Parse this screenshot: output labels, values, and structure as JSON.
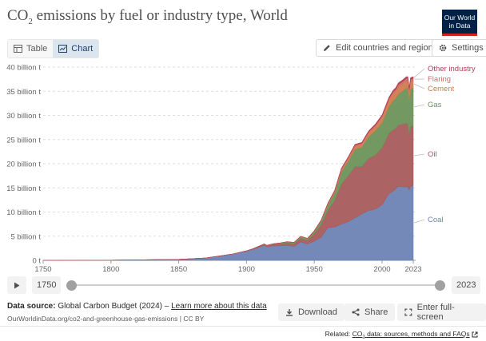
{
  "header": {
    "title_prefix": "CO",
    "title_sub": "2",
    "title_rest": " emissions by fuel or industry type, World",
    "logo_line1": "Our World",
    "logo_line2": "in Data"
  },
  "tabs": [
    {
      "label": "Table",
      "icon": "table-icon",
      "active": false
    },
    {
      "label": "Chart",
      "icon": "line-chart-icon",
      "active": true
    }
  ],
  "toolbar": {
    "edit_label": "Edit countries and regions",
    "settings_label": "Settings"
  },
  "timeline": {
    "start": "1750",
    "end": "2023"
  },
  "footer": {
    "source_label": "Data source:",
    "source_text": "Global Carbon Budget (2024)",
    "source_sep": " – ",
    "learn_more": "Learn more about this data",
    "url": "OurWorldinData.org/co2-and-greenhouse-gas-emissions | CC BY",
    "download_label": "Download",
    "share_label": "Share",
    "fullscreen_label": "Enter full-screen",
    "related_label": "Related:",
    "related_link_prefix": "CO",
    "related_link_sub": "2",
    "related_link_rest": " data: sources, methods and FAQs"
  },
  "chart_data": {
    "type": "area",
    "stacked": true,
    "x_ticks": [
      1750,
      1800,
      1850,
      1900,
      1950,
      2000,
      2023
    ],
    "y_ticks": [
      0,
      5,
      10,
      15,
      20,
      25,
      30,
      35,
      40
    ],
    "y_tick_labels": [
      "0 t",
      "5 billion t",
      "10 billion t",
      "15 billion t",
      "20 billion t",
      "25 billion t",
      "30 billion t",
      "35 billion t",
      "40 billion t"
    ],
    "xlim": [
      1750,
      2023
    ],
    "ylim": [
      0,
      40
    ],
    "grid": "horizontal dashed",
    "legend": "right, inline labels",
    "x": [
      1750,
      1800,
      1850,
      1870,
      1880,
      1890,
      1900,
      1905,
      1910,
      1913,
      1915,
      1920,
      1925,
      1930,
      1935,
      1940,
      1945,
      1950,
      1955,
      1960,
      1965,
      1970,
      1975,
      1980,
      1985,
      1990,
      1995,
      2000,
      2005,
      2008,
      2010,
      2012,
      2015,
      2018,
      2019,
      2020,
      2021,
      2023
    ],
    "series": [
      {
        "name": "Coal",
        "color": "#6d83b4",
        "values": [
          0.01,
          0.03,
          0.2,
          0.5,
          0.9,
          1.3,
          1.9,
          2.3,
          2.8,
          3.1,
          2.8,
          3.0,
          3.0,
          3.1,
          2.9,
          3.8,
          3.4,
          4.0,
          4.8,
          6.8,
          6.9,
          7.5,
          8.0,
          8.8,
          9.6,
          10.3,
          10.6,
          11.5,
          13.8,
          14.3,
          14.8,
          15.3,
          15.2,
          15.2,
          15.1,
          14.6,
          15.3,
          15.5
        ]
      },
      {
        "name": "Oil",
        "color": "#a75b5b",
        "values": [
          0,
          0,
          0,
          0,
          0,
          0.02,
          0.05,
          0.1,
          0.15,
          0.2,
          0.2,
          0.3,
          0.4,
          0.5,
          0.5,
          0.8,
          0.7,
          1.5,
          2.5,
          3.6,
          5.5,
          8.3,
          9.5,
          10.6,
          9.8,
          10.8,
          11.2,
          11.8,
          12.5,
          12.7,
          12.5,
          12.7,
          13.0,
          13.2,
          13.1,
          11.5,
          12.4,
          12.3
        ]
      },
      {
        "name": "Gas",
        "color": "#6c9259",
        "values": [
          0,
          0,
          0,
          0,
          0,
          0,
          0.01,
          0.02,
          0.05,
          0.06,
          0.07,
          0.1,
          0.15,
          0.2,
          0.25,
          0.3,
          0.35,
          0.5,
          0.8,
          1.1,
          1.5,
          2.5,
          3.0,
          3.6,
          4.0,
          4.5,
          5.0,
          5.2,
          5.5,
          6.0,
          6.2,
          6.4,
          6.8,
          7.3,
          7.5,
          7.3,
          7.7,
          7.9
        ]
      },
      {
        "name": "Cement",
        "color": "#d07b4e",
        "values": [
          0,
          0,
          0,
          0,
          0,
          0,
          0,
          0.01,
          0.02,
          0.03,
          0.03,
          0.04,
          0.05,
          0.05,
          0.06,
          0.07,
          0.07,
          0.1,
          0.13,
          0.2,
          0.3,
          0.4,
          0.5,
          0.6,
          0.7,
          0.8,
          1.0,
          1.2,
          1.4,
          1.6,
          1.6,
          1.7,
          1.6,
          1.6,
          1.6,
          1.6,
          1.7,
          1.6
        ]
      },
      {
        "name": "Flaring",
        "color": "#cf6a6a",
        "values": [
          0,
          0,
          0,
          0,
          0,
          0,
          0,
          0,
          0,
          0,
          0,
          0,
          0,
          0,
          0,
          0,
          0.02,
          0.03,
          0.05,
          0.1,
          0.2,
          0.3,
          0.3,
          0.3,
          0.2,
          0.2,
          0.2,
          0.2,
          0.3,
          0.3,
          0.3,
          0.3,
          0.4,
          0.4,
          0.4,
          0.4,
          0.4,
          0.4
        ]
      },
      {
        "name": "Other industry",
        "color": "#b13f56",
        "values": [
          0,
          0,
          0,
          0,
          0,
          0,
          0,
          0,
          0,
          0,
          0,
          0,
          0,
          0,
          0,
          0,
          0.01,
          0.02,
          0.03,
          0.05,
          0.06,
          0.08,
          0.1,
          0.12,
          0.12,
          0.15,
          0.18,
          0.2,
          0.22,
          0.25,
          0.3,
          0.3,
          0.3,
          0.3,
          0.3,
          0.3,
          0.3,
          0.3
        ]
      }
    ]
  }
}
